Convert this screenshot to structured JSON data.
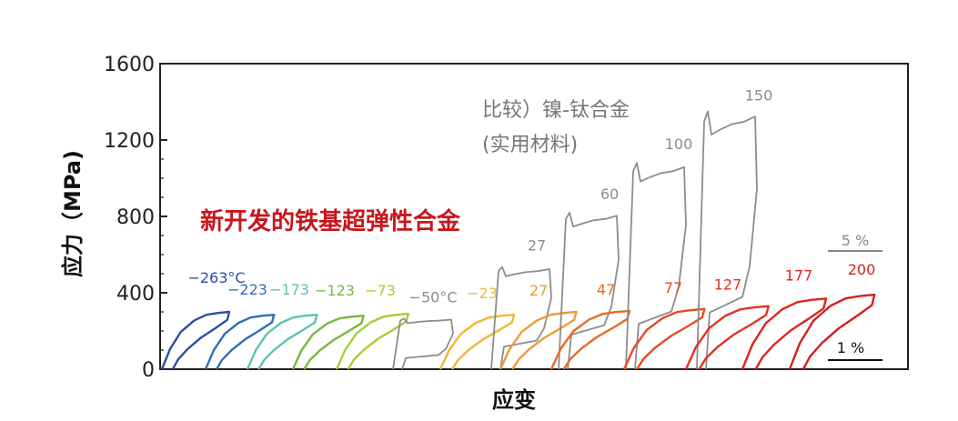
{
  "chart_data": {
    "type": "line",
    "title": "",
    "xlabel": "应变",
    "ylabel": "应力（MPa)",
    "ylim": [
      0,
      1600
    ],
    "yticks": [
      0,
      400,
      800,
      1200,
      1600
    ],
    "grid": false,
    "annotations": {
      "new_alloy": "新开发的铁基超弹性合金",
      "comparison_line1": "比较）镍-钛合金",
      "comparison_line2": "(实用材料)"
    },
    "scale_bars": [
      {
        "label": "5 %",
        "color": "#888888"
      },
      {
        "label": "1 %",
        "color": "#111111"
      }
    ],
    "series": [
      {
        "label": "−263°C",
        "kind": "fe",
        "peak": 300,
        "color": "#2b4fa0"
      },
      {
        "label": "−223",
        "kind": "fe",
        "peak": 285,
        "color": "#2e6fb5"
      },
      {
        "label": "−173",
        "kind": "fe",
        "peak": 285,
        "color": "#5fc2b0"
      },
      {
        "label": "−123",
        "kind": "fe",
        "peak": 280,
        "color": "#78b83c"
      },
      {
        "label": "−73",
        "kind": "fe",
        "peak": 290,
        "color": "#a8cc38"
      },
      {
        "label": "−50°C",
        "kind": "niti",
        "peak": 265,
        "color": "#8c8c8c"
      },
      {
        "label": "−23",
        "kind": "fe",
        "peak": 285,
        "color": "#f0b838"
      },
      {
        "label": "27",
        "kind": "niti",
        "peak": 535,
        "color": "#8c8c8c"
      },
      {
        "label": "27",
        "kind": "fe",
        "peak": 300,
        "color": "#ef9a35"
      },
      {
        "label": "60",
        "kind": "niti",
        "peak": 820,
        "color": "#8c8c8c"
      },
      {
        "label": "47",
        "kind": "fe",
        "peak": 305,
        "color": "#ea6a25"
      },
      {
        "label": "100",
        "kind": "niti",
        "peak": 1080,
        "color": "#8c8c8c"
      },
      {
        "label": "77",
        "kind": "fe",
        "peak": 315,
        "color": "#e54b22"
      },
      {
        "label": "150",
        "kind": "niti",
        "peak": 1350,
        "color": "#8c8c8c"
      },
      {
        "label": "127",
        "kind": "fe",
        "peak": 330,
        "color": "#e2331f"
      },
      {
        "label": "177",
        "kind": "fe",
        "peak": 370,
        "color": "#de2420"
      },
      {
        "label": "200",
        "kind": "fe",
        "peak": 390,
        "color": "#d81e1e"
      }
    ]
  }
}
